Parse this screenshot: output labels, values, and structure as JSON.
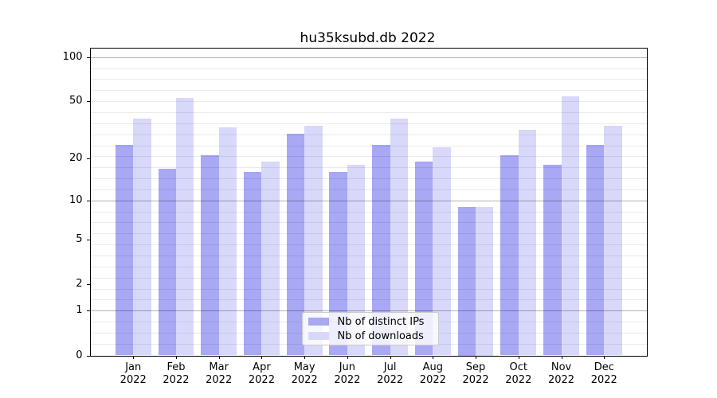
{
  "chart_data": {
    "type": "bar",
    "title": "hu35ksubd.db 2022",
    "year_label": "2022",
    "categories": [
      "Jan",
      "Feb",
      "Mar",
      "Apr",
      "May",
      "Jun",
      "Jul",
      "Aug",
      "Sep",
      "Oct",
      "Nov",
      "Dec"
    ],
    "series": [
      {
        "name": "Nb of distinct IPs",
        "color": "#a8a8f5",
        "values": [
          25,
          17,
          21,
          16,
          30,
          16,
          25,
          19,
          9,
          21,
          18,
          25
        ]
      },
      {
        "name": "Nb of downloads",
        "color": "#d8d8fa",
        "values": [
          38,
          53,
          33,
          19,
          34,
          18,
          38,
          24,
          9,
          32,
          54,
          34
        ]
      }
    ],
    "yscale": "log1p",
    "ylim": [
      0,
      100
    ],
    "yticks": [
      100,
      50,
      20,
      10,
      5,
      2,
      1,
      0
    ],
    "grid": "horizontal",
    "legend_position": "lower-center",
    "axis_color": "#000000",
    "background_color": "#ffffff"
  }
}
